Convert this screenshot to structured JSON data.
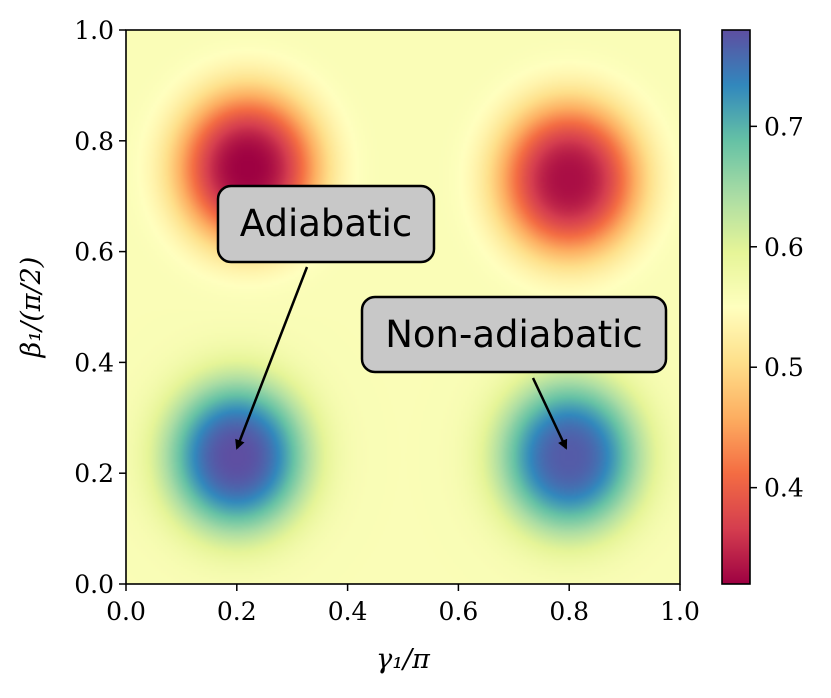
{
  "chart_data": {
    "type": "heatmap",
    "title": "",
    "xlabel": "γ₁/π",
    "ylabel": "β₁/(π/2)",
    "xlim": [
      0.0,
      1.0
    ],
    "ylim": [
      0.0,
      1.0
    ],
    "xticks": [
      "0.0",
      "0.2",
      "0.4",
      "0.6",
      "0.8",
      "1.0"
    ],
    "yticks": [
      "0.0",
      "0.2",
      "0.4",
      "0.6",
      "0.8",
      "1.0"
    ],
    "colormap": "Spectral",
    "colorbar": {
      "range": [
        0.32,
        0.78
      ],
      "ticks": [
        "0.4",
        "0.5",
        "0.6",
        "0.7"
      ],
      "tick_values": [
        0.4,
        0.5,
        0.6,
        0.7
      ]
    },
    "field": {
      "description_of_extrema": "two maxima near (0.2,0.23) and (0.8,0.23); two minima near (0.22,0.75) and (0.8,0.73)",
      "baseline": 0.56,
      "extrema": [
        {
          "x": 0.2,
          "y": 0.23,
          "value": 0.78
        },
        {
          "x": 0.8,
          "y": 0.23,
          "value": 0.77
        },
        {
          "x": 0.22,
          "y": 0.75,
          "value": 0.32
        },
        {
          "x": 0.8,
          "y": 0.73,
          "value": 0.33
        }
      ]
    },
    "annotations": [
      {
        "text": "Adiabatic",
        "target": {
          "x": 0.19,
          "y": 0.24
        }
      },
      {
        "text": "Non-adiabatic",
        "target": {
          "x": 0.795,
          "y": 0.24
        }
      }
    ],
    "grid": false,
    "legend": "none"
  }
}
